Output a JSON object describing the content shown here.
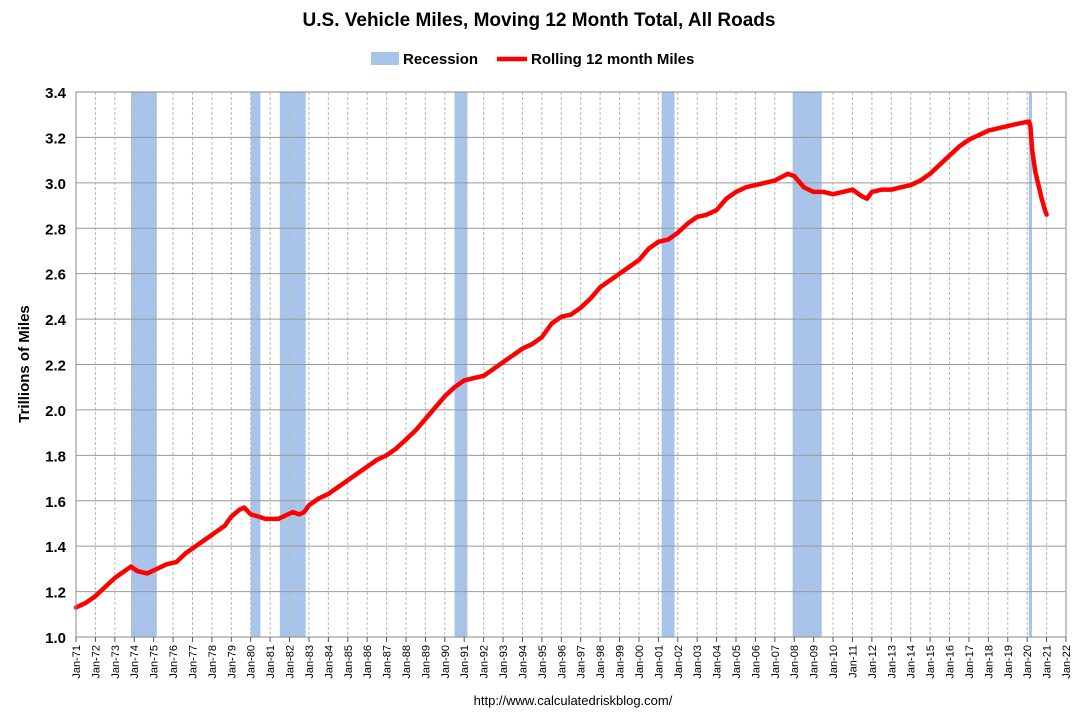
{
  "chart_data": {
    "type": "line",
    "title": "U.S. Vehicle Miles, Moving 12 Month Total, All Roads",
    "ylabel": "Trillions of Miles",
    "xlabel": "",
    "source": "http://www.calculatedriskblog.com/",
    "legend": {
      "placement": "top-center",
      "recession_label": "Recession",
      "series_label": "Rolling 12 month Miles"
    },
    "colors": {
      "line": "#ff0000",
      "recession": "#a9c4eb",
      "grid": "#b8b8b8"
    },
    "grid": true,
    "ylim": [
      1.0,
      3.4
    ],
    "yticks": [
      "1.0",
      "1.2",
      "1.4",
      "1.6",
      "1.8",
      "2.0",
      "2.2",
      "2.4",
      "2.6",
      "2.8",
      "3.0",
      "3.2",
      "3.4"
    ],
    "xlim": [
      "1971-01",
      "2022-01"
    ],
    "xticks": [
      "Jan-71",
      "Jan-72",
      "Jan-73",
      "Jan-74",
      "Jan-75",
      "Jan-76",
      "Jan-77",
      "Jan-78",
      "Jan-79",
      "Jan-80",
      "Jan-81",
      "Jan-82",
      "Jan-83",
      "Jan-84",
      "Jan-85",
      "Jan-86",
      "Jan-87",
      "Jan-88",
      "Jan-89",
      "Jan-90",
      "Jan-91",
      "Jan-92",
      "Jan-93",
      "Jan-94",
      "Jan-95",
      "Jan-96",
      "Jan-97",
      "Jan-98",
      "Jan-99",
      "Jan-00",
      "Jan-01",
      "Jan-02",
      "Jan-03",
      "Jan-04",
      "Jan-05",
      "Jan-06",
      "Jan-07",
      "Jan-08",
      "Jan-09",
      "Jan-10",
      "Jan-11",
      "Jan-12",
      "Jan-13",
      "Jan-14",
      "Jan-15",
      "Jan-16",
      "Jan-17",
      "Jan-18",
      "Jan-19",
      "Jan-20",
      "Jan-21",
      "Jan-22"
    ],
    "recessions": [
      [
        "1973-11",
        "1975-03"
      ],
      [
        "1980-01",
        "1980-07"
      ],
      [
        "1981-07",
        "1982-11"
      ],
      [
        "1990-07",
        "1991-03"
      ],
      [
        "2001-03",
        "2001-11"
      ],
      [
        "2007-12",
        "2009-06"
      ],
      [
        "2020-02",
        "2020-04"
      ]
    ],
    "series": [
      {
        "name": "Rolling 12 month Miles",
        "points": [
          [
            "1971-01",
            1.13
          ],
          [
            "1971-07",
            1.15
          ],
          [
            "1972-01",
            1.18
          ],
          [
            "1972-07",
            1.22
          ],
          [
            "1973-01",
            1.26
          ],
          [
            "1973-07",
            1.29
          ],
          [
            "1973-11",
            1.31
          ],
          [
            "1974-03",
            1.29
          ],
          [
            "1974-09",
            1.28
          ],
          [
            "1975-03",
            1.3
          ],
          [
            "1975-09",
            1.32
          ],
          [
            "1976-03",
            1.33
          ],
          [
            "1976-09",
            1.37
          ],
          [
            "1977-03",
            1.4
          ],
          [
            "1977-09",
            1.43
          ],
          [
            "1978-03",
            1.46
          ],
          [
            "1978-09",
            1.49
          ],
          [
            "1979-01",
            1.53
          ],
          [
            "1979-06",
            1.56
          ],
          [
            "1979-09",
            1.57
          ],
          [
            "1980-01",
            1.54
          ],
          [
            "1980-06",
            1.53
          ],
          [
            "1980-10",
            1.52
          ],
          [
            "1981-06",
            1.52
          ],
          [
            "1981-12",
            1.54
          ],
          [
            "1982-03",
            1.55
          ],
          [
            "1982-07",
            1.54
          ],
          [
            "1982-10",
            1.55
          ],
          [
            "1983-01",
            1.58
          ],
          [
            "1983-07",
            1.61
          ],
          [
            "1984-01",
            1.63
          ],
          [
            "1984-07",
            1.66
          ],
          [
            "1985-01",
            1.69
          ],
          [
            "1985-07",
            1.72
          ],
          [
            "1986-01",
            1.75
          ],
          [
            "1986-07",
            1.78
          ],
          [
            "1987-01",
            1.8
          ],
          [
            "1987-07",
            1.83
          ],
          [
            "1988-01",
            1.87
          ],
          [
            "1988-07",
            1.91
          ],
          [
            "1989-01",
            1.96
          ],
          [
            "1989-07",
            2.01
          ],
          [
            "1990-01",
            2.06
          ],
          [
            "1990-07",
            2.1
          ],
          [
            "1991-01",
            2.13
          ],
          [
            "1991-07",
            2.14
          ],
          [
            "1992-01",
            2.15
          ],
          [
            "1992-07",
            2.18
          ],
          [
            "1993-01",
            2.21
          ],
          [
            "1993-07",
            2.24
          ],
          [
            "1994-01",
            2.27
          ],
          [
            "1994-07",
            2.29
          ],
          [
            "1995-01",
            2.32
          ],
          [
            "1995-07",
            2.38
          ],
          [
            "1996-01",
            2.41
          ],
          [
            "1996-07",
            2.42
          ],
          [
            "1997-01",
            2.45
          ],
          [
            "1997-07",
            2.49
          ],
          [
            "1998-01",
            2.54
          ],
          [
            "1998-07",
            2.57
          ],
          [
            "1999-01",
            2.6
          ],
          [
            "1999-07",
            2.63
          ],
          [
            "2000-01",
            2.66
          ],
          [
            "2000-07",
            2.71
          ],
          [
            "2001-01",
            2.74
          ],
          [
            "2001-07",
            2.75
          ],
          [
            "2002-01",
            2.78
          ],
          [
            "2002-07",
            2.82
          ],
          [
            "2003-01",
            2.85
          ],
          [
            "2003-07",
            2.86
          ],
          [
            "2004-01",
            2.88
          ],
          [
            "2004-07",
            2.93
          ],
          [
            "2005-01",
            2.96
          ],
          [
            "2005-07",
            2.98
          ],
          [
            "2006-01",
            2.99
          ],
          [
            "2006-07",
            3.0
          ],
          [
            "2007-01",
            3.01
          ],
          [
            "2007-09",
            3.04
          ],
          [
            "2008-01",
            3.03
          ],
          [
            "2008-07",
            2.98
          ],
          [
            "2009-01",
            2.96
          ],
          [
            "2009-07",
            2.96
          ],
          [
            "2010-01",
            2.95
          ],
          [
            "2010-07",
            2.96
          ],
          [
            "2011-01",
            2.97
          ],
          [
            "2011-07",
            2.94
          ],
          [
            "2011-10",
            2.93
          ],
          [
            "2012-01",
            2.96
          ],
          [
            "2012-07",
            2.97
          ],
          [
            "2013-01",
            2.97
          ],
          [
            "2013-07",
            2.98
          ],
          [
            "2014-01",
            2.99
          ],
          [
            "2014-07",
            3.01
          ],
          [
            "2015-01",
            3.04
          ],
          [
            "2015-07",
            3.08
          ],
          [
            "2016-01",
            3.12
          ],
          [
            "2016-07",
            3.16
          ],
          [
            "2017-01",
            3.19
          ],
          [
            "2017-07",
            3.21
          ],
          [
            "2018-01",
            3.23
          ],
          [
            "2018-07",
            3.24
          ],
          [
            "2019-01",
            3.25
          ],
          [
            "2019-07",
            3.26
          ],
          [
            "2020-02",
            3.27
          ],
          [
            "2020-03",
            3.25
          ],
          [
            "2020-04",
            3.15
          ],
          [
            "2020-06",
            3.05
          ],
          [
            "2020-08",
            2.99
          ],
          [
            "2020-10",
            2.93
          ],
          [
            "2020-12",
            2.88
          ],
          [
            "2021-01",
            2.86
          ]
        ]
      }
    ]
  }
}
